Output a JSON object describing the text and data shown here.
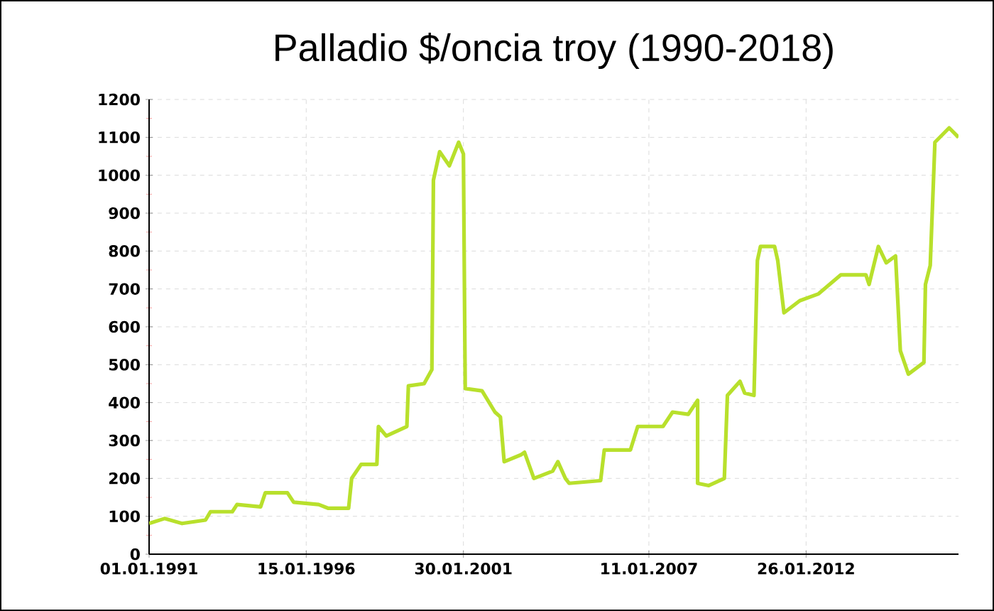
{
  "chart_data": {
    "type": "line",
    "title": "Palladio  $/oncia troy (1990-2018)",
    "x": [
      "1991-01-01",
      "1991-07-01",
      "1992-01-22",
      "1992-10-23",
      "1992-12-20",
      "1993-09-02",
      "1993-10-27",
      "1994-07-30",
      "1994-09-23",
      "1995-06-09",
      "1995-08-21",
      "1996-06-09",
      "1996-10-01",
      "1997-05-26",
      "1997-07-01",
      "1997-10-20",
      "1998-04-22",
      "1998-05-10",
      "1998-08-10",
      "1999-04-08",
      "1999-04-26",
      "1999-10-27",
      "2000-01-26",
      "2000-02-13",
      "2000-04-26",
      "2000-08-18",
      "2000-12-05",
      "2001-01-30",
      "2001-02-20",
      "2001-09-05",
      "2002-02-03",
      "2002-04-08",
      "2002-05-22",
      "2002-12-02",
      "2003-01-15",
      "2003-05-05",
      "2003-12-10",
      "2004-02-10",
      "2004-05-08",
      "2004-06-21",
      "2005-06-25",
      "2005-08-07",
      "2006-06-09",
      "2006-09-02",
      "2007-06-25",
      "2007-10-15",
      "2008-04-15",
      "2008-08-04",
      "2008-08-04",
      "2008-12-13",
      "2009-06-13",
      "2009-07-19",
      "2009-12-13",
      "2010-02-06",
      "2010-05-26",
      "2010-07-05",
      "2010-08-10",
      "2011-01-22",
      "2011-02-28",
      "2011-05-12",
      "2011-11-13",
      "2012-06-20",
      "2013-03-07",
      "2013-12-27",
      "2014-02-02",
      "2014-05-22",
      "2014-08-22",
      "2014-12-09",
      "2015-02-03",
      "2015-05-08",
      "2015-11-06",
      "2015-11-24",
      "2016-01-19",
      "2016-03-14",
      "2016-08-28",
      "2016-12-16"
    ],
    "values": [
      81,
      94,
      81,
      90,
      112,
      112,
      131,
      125,
      162,
      162,
      137,
      131,
      121,
      121,
      200,
      237,
      237,
      337,
      312,
      337,
      444,
      450,
      487,
      987,
      1062,
      1025,
      1087,
      1056,
      437,
      431,
      375,
      362,
      244,
      262,
      269,
      200,
      219,
      244,
      200,
      187,
      194,
      275,
      275,
      337,
      337,
      375,
      369,
      406,
      187,
      181,
      200,
      419,
      456,
      425,
      419,
      775,
      812,
      812,
      775,
      637,
      669,
      687,
      737,
      737,
      712,
      812,
      769,
      787,
      537,
      475,
      506,
      712,
      762,
      1087,
      1125,
      1100
    ],
    "color": "#b8e02c",
    "xlim": [
      "1991-01-01",
      "2016-12-16"
    ],
    "xticks": [
      {
        "value": "1991-01-01",
        "label": "01.01.1991"
      },
      {
        "value": "1996-01-15",
        "label": "15.01.1996"
      },
      {
        "value": "2001-01-30",
        "label": "30.01.2001"
      },
      {
        "value": "2007-01-11",
        "label": "11.01.2007"
      },
      {
        "value": "2012-01-26",
        "label": "26.01.2012"
      }
    ],
    "ylim": [
      0,
      1200
    ],
    "yticks": [
      0,
      100,
      200,
      300,
      400,
      500,
      600,
      700,
      800,
      900,
      1000,
      1100,
      1200
    ],
    "grid": true
  }
}
